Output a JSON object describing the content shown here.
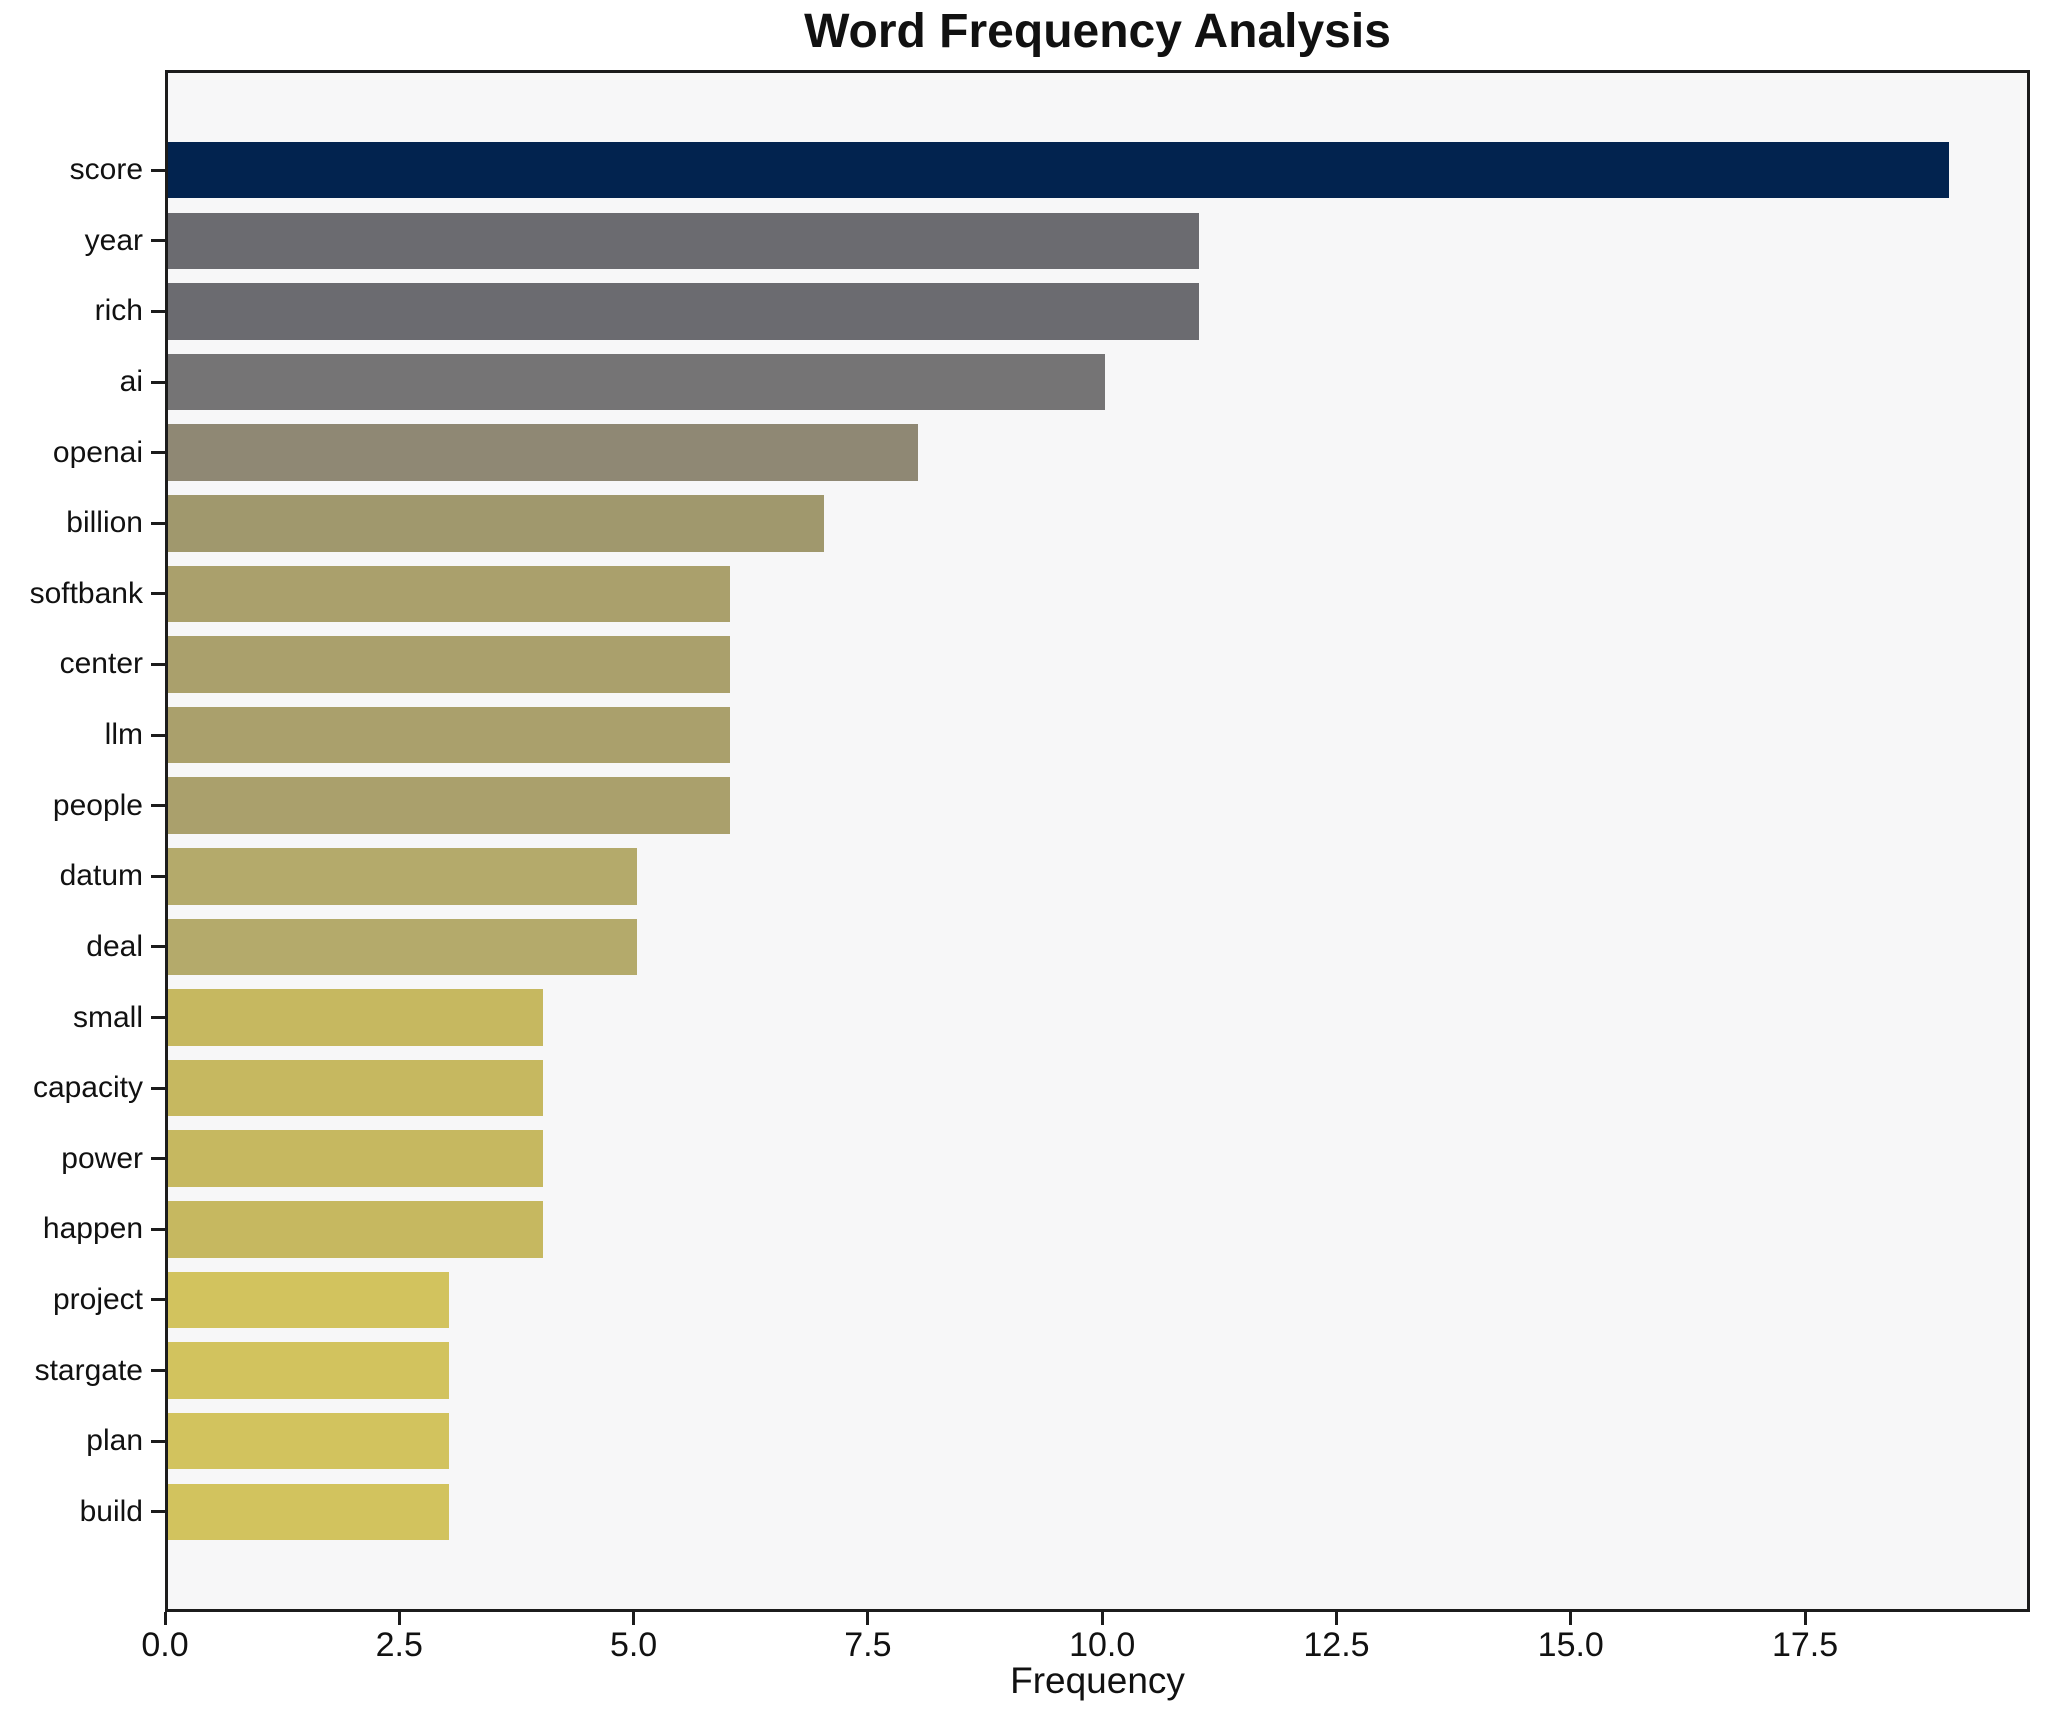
{
  "chart_data": {
    "type": "bar",
    "orientation": "horizontal",
    "title": "Word Frequency Analysis",
    "xlabel": "Frequency",
    "ylabel": "",
    "categories": [
      "score",
      "year",
      "rich",
      "ai",
      "openai",
      "billion",
      "softbank",
      "center",
      "llm",
      "people",
      "datum",
      "deal",
      "small",
      "capacity",
      "power",
      "happen",
      "project",
      "stargate",
      "plan",
      "build"
    ],
    "values": [
      19,
      11,
      11,
      10,
      8,
      7,
      6,
      6,
      6,
      6,
      5,
      5,
      4,
      4,
      4,
      4,
      3,
      3,
      3,
      3
    ],
    "bar_colors": [
      "#02234f",
      "#6b6b70",
      "#6b6b70",
      "#757475",
      "#8f8874",
      "#a0986d",
      "#aaa06c",
      "#aaa06c",
      "#aaa06c",
      "#aaa06c",
      "#b4aa6b",
      "#b4aa6b",
      "#c6b860",
      "#c6b860",
      "#c6b860",
      "#c6b860",
      "#d2c35e",
      "#d2c35e",
      "#d2c35e",
      "#d2c35e"
    ],
    "xlim": [
      0,
      19.9
    ],
    "x_ticks": [
      0.0,
      2.5,
      5.0,
      7.5,
      10.0,
      12.5,
      15.0,
      17.5
    ],
    "x_tick_labels": [
      "0.0",
      "2.5",
      "5.0",
      "7.5",
      "10.0",
      "12.5",
      "15.0",
      "17.5"
    ],
    "grid": false,
    "legend_position": "none",
    "plot_background": "#f7f7f8",
    "spine_color": "#1c1c1c",
    "bar_height_fraction": 0.8
  }
}
